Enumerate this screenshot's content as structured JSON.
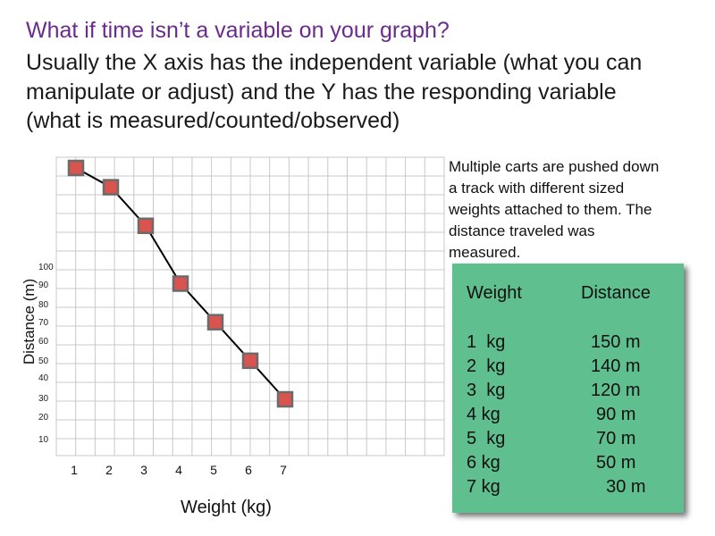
{
  "title": "What if time isn’t a variable on your graph?",
  "subtitle_lines": [
    "Usually the X axis has the independent variable (what you can",
    "manipulate or adjust) and the Y has the responding variable",
    "(what is measured/counted/observed)"
  ],
  "description_lines": [
    "Multiple carts are pushed down",
    "a track with different sized",
    "weights attached to them. The",
    "distance traveled  was",
    "measured."
  ],
  "table": {
    "headers": [
      "Weight",
      "Distance"
    ],
    "rows": [
      [
        "1  kg",
        "150 m"
      ],
      [
        "2  kg",
        "140 m"
      ],
      [
        "3  kg",
        "120 m"
      ],
      [
        "4 kg",
        "90 m"
      ],
      [
        "5  kg",
        "70 m"
      ],
      [
        "6 kg",
        "50 m"
      ],
      [
        "7 kg",
        "  30 m"
      ]
    ]
  },
  "colors": {
    "title": "#6a2c8c",
    "table_bg": "#5fbf8f",
    "marker_fill": "#d9534f",
    "marker_border": "#6b6b6b",
    "grid": "#c8c8c8",
    "line": "#000000"
  },
  "chart_data": {
    "type": "line",
    "xlabel": "Weight (kg)",
    "ylabel": "Distance (m)",
    "x_ticks": [
      "1",
      "2",
      "3",
      "4",
      "5",
      "6",
      "7"
    ],
    "y_ticks": [
      "10",
      "20",
      "30",
      "40",
      "50",
      "60",
      "70",
      "80",
      "90",
      "100"
    ],
    "x": [
      1,
      2,
      3,
      4,
      5,
      6,
      7
    ],
    "values": [
      150,
      140,
      120,
      90,
      70,
      50,
      30
    ],
    "grid": true,
    "marker": "square"
  }
}
